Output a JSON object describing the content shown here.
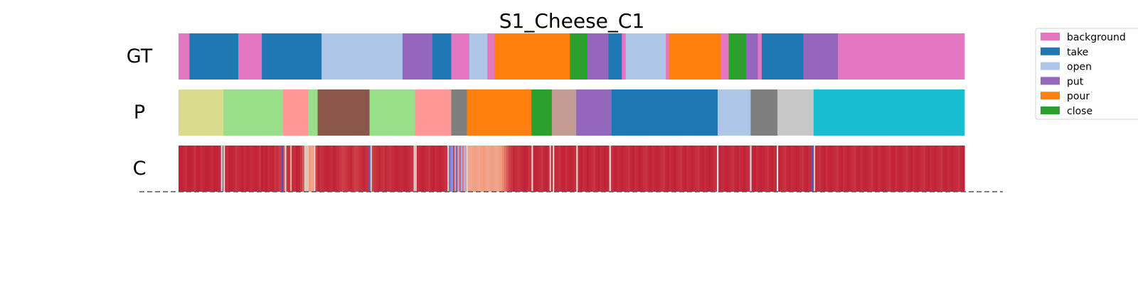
{
  "chart_data": {
    "type": "segmentation_strips",
    "title": "S1_Cheese_C1",
    "x_range": [
      0,
      1000
    ],
    "rows": [
      {
        "label": "GT",
        "segments": [
          {
            "start": 0,
            "end": 14,
            "class": "background"
          },
          {
            "start": 14,
            "end": 76,
            "class": "take"
          },
          {
            "start": 76,
            "end": 106,
            "class": "background"
          },
          {
            "start": 106,
            "end": 182,
            "class": "take"
          },
          {
            "start": 182,
            "end": 285,
            "class": "open"
          },
          {
            "start": 285,
            "end": 323,
            "class": "put"
          },
          {
            "start": 323,
            "end": 347,
            "class": "take"
          },
          {
            "start": 347,
            "end": 370,
            "class": "background"
          },
          {
            "start": 370,
            "end": 393,
            "class": "open"
          },
          {
            "start": 393,
            "end": 402,
            "class": "background"
          },
          {
            "start": 402,
            "end": 498,
            "class": "pour"
          },
          {
            "start": 498,
            "end": 520,
            "class": "close"
          },
          {
            "start": 520,
            "end": 547,
            "class": "put"
          },
          {
            "start": 547,
            "end": 564,
            "class": "take"
          },
          {
            "start": 564,
            "end": 569,
            "class": "background"
          },
          {
            "start": 569,
            "end": 620,
            "class": "open"
          },
          {
            "start": 620,
            "end": 624,
            "class": "background"
          },
          {
            "start": 624,
            "end": 690,
            "class": "pour"
          },
          {
            "start": 690,
            "end": 700,
            "class": "background"
          },
          {
            "start": 700,
            "end": 722,
            "class": "close"
          },
          {
            "start": 722,
            "end": 737,
            "class": "put"
          },
          {
            "start": 737,
            "end": 742,
            "class": "background"
          },
          {
            "start": 742,
            "end": 795,
            "class": "take"
          },
          {
            "start": 795,
            "end": 839,
            "class": "put"
          },
          {
            "start": 839,
            "end": 1000,
            "class": "background"
          }
        ]
      },
      {
        "label": "P",
        "segments": [
          {
            "start": 0,
            "end": 57,
            "class": "c_olive"
          },
          {
            "start": 57,
            "end": 133,
            "class": "c_lightgreen"
          },
          {
            "start": 133,
            "end": 165,
            "class": "c_salmon"
          },
          {
            "start": 165,
            "end": 177,
            "class": "c_lightgreen"
          },
          {
            "start": 177,
            "end": 243,
            "class": "c_brown"
          },
          {
            "start": 243,
            "end": 301,
            "class": "c_lightgreen"
          },
          {
            "start": 301,
            "end": 347,
            "class": "c_salmon"
          },
          {
            "start": 347,
            "end": 367,
            "class": "c_gray"
          },
          {
            "start": 367,
            "end": 449,
            "class": "pour"
          },
          {
            "start": 449,
            "end": 475,
            "class": "close"
          },
          {
            "start": 475,
            "end": 506,
            "class": "c_rosybrown"
          },
          {
            "start": 506,
            "end": 551,
            "class": "put"
          },
          {
            "start": 551,
            "end": 686,
            "class": "take"
          },
          {
            "start": 686,
            "end": 728,
            "class": "open"
          },
          {
            "start": 728,
            "end": 762,
            "class": "c_gray"
          },
          {
            "start": 762,
            "end": 808,
            "class": "c_lightgray"
          },
          {
            "start": 808,
            "end": 1000,
            "class": "c_cyan"
          }
        ]
      },
      {
        "label": "C",
        "colormap": "coolwarm",
        "values": [
          0.95,
          0.95,
          0.94,
          0.93,
          0.95,
          0.95,
          0.94,
          0.92,
          0.95,
          0.95,
          0.93,
          0.94,
          0.95,
          0.95,
          0.94,
          0.93,
          0.95,
          0.95,
          0.94,
          0.92,
          0.94,
          0.95,
          0.93,
          0.95,
          0.95,
          0.94,
          0.92,
          0.93,
          0.94,
          0.95,
          0.93,
          0.95,
          0.94,
          0.93,
          0.94,
          0.95,
          0.94,
          0.92,
          0.95,
          0.94,
          0.95,
          0.93,
          0.94,
          0.95,
          0.92,
          0.93,
          0.91,
          0.9,
          0.88,
          0.9,
          0.93,
          0.92,
          0.94,
          0.93,
          0.95,
          0.94,
          0.91,
          0.85,
          0.5,
          0.6,
          0.75,
          0.7,
          0.78,
          0.9,
          0.94,
          0.92,
          0.93,
          0.94,
          0.95,
          0.94,
          0.93,
          0.95,
          0.94,
          0.93,
          0.92,
          0.9,
          0.91,
          0.92,
          0.93,
          0.94,
          0.92,
          0.9,
          0.91,
          0.92,
          0.93,
          0.94,
          0.93,
          0.92,
          0.91,
          0.9,
          0.92,
          0.93,
          0.94,
          0.93,
          0.92,
          0.94,
          0.93,
          0.92,
          0.93,
          0.94,
          0.95,
          0.94,
          0.93,
          0.94,
          0.95,
          0.94,
          0.93,
          0.92,
          0.94,
          0.95,
          0.93,
          0.94,
          0.95,
          0.94,
          0.93,
          0.92,
          0.94,
          0.95,
          0.93,
          0.94,
          0.95,
          0.94,
          0.93,
          0.92,
          0.91,
          0.9,
          0.89,
          0.9,
          0.88,
          0.86,
          0.82,
          0.8,
          0.78,
          0.72,
          0.7,
          0.72,
          0.74,
          0.72,
          0.7,
          0.73,
          0.75,
          0.72,
          0.7,
          0.72,
          0.74,
          0.72,
          0.7,
          0.72,
          0.74,
          0.78,
          0.82,
          0.86,
          0.9,
          0.92,
          0.94,
          0.93,
          0.92,
          0.93,
          0.94,
          0.95,
          0.94,
          0.92,
          0.93,
          0.94,
          0.95,
          0.94,
          0.93,
          0.92,
          0.94,
          0.95,
          0.93,
          0.94,
          0.95,
          0.94,
          0.93,
          0.92,
          0.94,
          0.95,
          0.93,
          0.94,
          0.95,
          0.94,
          0.93,
          0.92,
          0.94,
          0.95,
          0.93,
          0.94,
          0.95,
          0.94,
          0.93,
          0.92,
          0.94,
          0.95,
          0.93,
          0.94,
          0.95,
          0.94,
          0.93,
          0.92,
          0.94,
          0.95,
          0.93,
          0.94,
          0.95,
          0.94,
          0.93,
          0.92,
          0.94,
          0.95,
          0.93,
          0.94,
          0.95,
          0.94,
          0.93,
          0.92,
          0.94,
          0.95,
          0.93,
          0.94,
          0.95,
          0.94,
          0.93,
          0.92,
          0.94,
          0.95,
          0.93,
          0.94,
          0.95,
          0.94,
          0.93,
          0.92,
          0.94,
          0.95,
          0.93,
          0.94,
          0.95,
          0.94,
          0.93,
          0.92,
          0.94,
          0.95,
          0.93,
          0.94,
          0.95,
          0.94,
          0.93,
          0.92,
          0.94,
          0.95,
          0.93,
          0.94,
          0.95,
          0.94,
          0.93,
          0.92,
          0.94,
          0.95,
          0.93,
          0.94,
          0.95,
          0.94,
          0.93,
          0.92,
          0.94,
          0.95,
          0.93,
          0.94,
          0.95,
          0.94,
          0.93,
          0.92,
          0.94,
          0.95,
          0.93,
          0.94,
          0.95,
          0.94,
          0.93,
          0.92,
          0.94,
          0.95,
          0.93,
          0.94,
          0.95,
          0.94,
          0.93,
          0.92,
          0.94,
          0.95,
          0.93,
          0.94,
          0.95,
          0.94,
          0.93,
          0.92,
          0.94,
          0.95,
          0.93,
          0.94,
          0.95,
          0.94,
          0.93,
          0.92,
          0.94,
          0.95,
          0.93,
          0.94,
          0.95,
          0.94,
          0.93,
          0.92,
          0.94,
          0.95,
          0.93,
          0.94,
          0.95,
          0.94,
          0.93,
          0.92,
          0.94,
          0.95,
          0.93,
          0.94,
          0.95,
          0.94,
          0.93,
          0.92,
          0.94,
          0.95,
          0.93,
          0.94,
          0.95,
          0.94,
          0.93,
          0.92,
          0.94,
          0.95,
          0.93,
          0.94,
          0.95,
          0.94,
          0.93,
          0.92,
          0.94,
          0.95,
          0.93,
          0.94,
          0.95,
          0.94,
          0.93,
          0.92,
          0.94,
          0.95,
          0.93,
          0.94,
          0.95,
          0.94,
          0.93,
          0.92,
          0.94,
          0.95
        ],
        "notches": [
          {
            "at": 55,
            "v": 0.45
          },
          {
            "at": 58,
            "v": 0.55
          },
          {
            "at": 132,
            "v": 0.02
          },
          {
            "at": 136,
            "v": 0.55
          },
          {
            "at": 143,
            "v": 0.7
          },
          {
            "at": 162,
            "v": 0.6
          },
          {
            "at": 173,
            "v": 0.55
          },
          {
            "at": 243,
            "v": 0.05
          },
          {
            "at": 245,
            "v": 0.6
          },
          {
            "at": 300,
            "v": 0.55
          },
          {
            "at": 302,
            "v": 0.6
          },
          {
            "at": 343,
            "v": 0.5
          },
          {
            "at": 346,
            "v": 0.15
          },
          {
            "at": 348,
            "v": 0.2
          },
          {
            "at": 352,
            "v": 0.25
          },
          {
            "at": 356,
            "v": 0.3
          },
          {
            "at": 360,
            "v": 0.25
          },
          {
            "at": 364,
            "v": 0.3
          },
          {
            "at": 367,
            "v": 0.55
          },
          {
            "at": 450,
            "v": 0.55
          },
          {
            "at": 473,
            "v": 0.6
          },
          {
            "at": 477,
            "v": 0.55
          },
          {
            "at": 507,
            "v": 0.55
          },
          {
            "at": 549,
            "v": 0.5
          },
          {
            "at": 686,
            "v": 0.5
          },
          {
            "at": 728,
            "v": 0.45
          },
          {
            "at": 762,
            "v": 0.5
          },
          {
            "at": 806,
            "v": 0.05
          },
          {
            "at": 809,
            "v": 0.6
          }
        ]
      }
    ],
    "legend": {
      "position": "upper right",
      "items": [
        {
          "label": "background",
          "class": "background"
        },
        {
          "label": "take",
          "class": "take"
        },
        {
          "label": "open",
          "class": "open"
        },
        {
          "label": "put",
          "class": "put"
        },
        {
          "label": "pour",
          "class": "pour"
        },
        {
          "label": "close",
          "class": "close"
        }
      ]
    },
    "colors": {
      "background": "#e377c2",
      "take": "#1f77b4",
      "open": "#aec7e8",
      "put": "#9467bd",
      "pour": "#ff7f0e",
      "close": "#2ca02c",
      "c_olive": "#dbdb8d",
      "c_lightgreen": "#98df8a",
      "c_salmon": "#ff9896",
      "c_brown": "#8c564b",
      "c_gray": "#7f7f7f",
      "c_rosybrown": "#c49c94",
      "c_lightgray": "#c7c7c7",
      "c_cyan": "#17becf"
    }
  }
}
